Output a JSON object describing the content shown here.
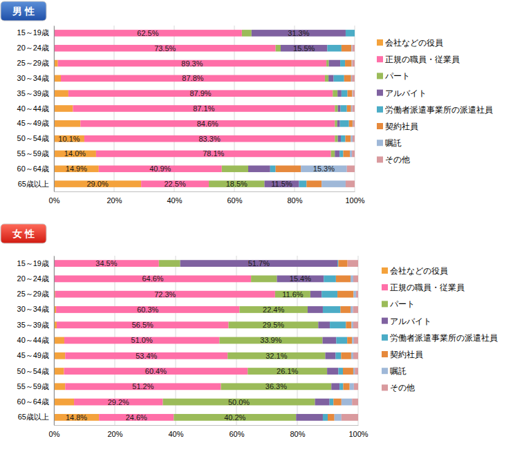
{
  "chart_data": [
    {
      "type": "bar",
      "title": "男 性",
      "orientation": "horizontal",
      "stacked": true,
      "data_labels": true,
      "legend": "right",
      "grid": true,
      "categories": [
        "15～19歳",
        "20～24歳",
        "25～29歳",
        "30～34歳",
        "35～39歳",
        "40～44歳",
        "45～49歳",
        "50～54歳",
        "55～59歳",
        "60～64歳",
        "65歳以上"
      ],
      "xlim": [
        0,
        100
      ],
      "xticks": [
        {
          "value": 0,
          "label": "0%"
        },
        {
          "value": 20,
          "label": "20%"
        },
        {
          "value": 40,
          "label": "40%"
        },
        {
          "value": 60,
          "label": "60%"
        },
        {
          "value": 80,
          "label": "80%"
        },
        {
          "value": 100,
          "label": "100%"
        }
      ],
      "series": [
        {
          "name": "会社などの役員",
          "color": "#f4a23c",
          "values": [
            0,
            0.2,
            1.3,
            2.3,
            4.8,
            6.3,
            8.8,
            10.1,
            14.0,
            14.9,
            29.0
          ],
          "value_labels": [
            null,
            null,
            null,
            null,
            null,
            null,
            null,
            "10.1%",
            "14.0%",
            "14.9%",
            "29.0%"
          ]
        },
        {
          "name": "正規の職員・従業員",
          "color": "#ff6fa8",
          "values": [
            62.5,
            73.5,
            89.3,
            87.8,
            87.9,
            87.1,
            84.6,
            83.3,
            78.1,
            40.9,
            22.5
          ],
          "value_labels": [
            "62.5%",
            "73.5%",
            "89.3%",
            "87.8%",
            "87.9%",
            "87.1%",
            "84.6%",
            "83.3%",
            "78.1%",
            "40.9%",
            "22.5%"
          ]
        },
        {
          "name": "パート",
          "color": "#9bbb59",
          "values": [
            3.2,
            1.7,
            0.8,
            1.2,
            1.6,
            1.0,
            0.8,
            1.0,
            1.3,
            8.8,
            18.5
          ],
          "value_labels": [
            null,
            null,
            null,
            null,
            null,
            null,
            null,
            null,
            null,
            null,
            "18.5%"
          ]
        },
        {
          "name": "アルバイト",
          "color": "#7f61a0",
          "values": [
            31.3,
            15.5,
            3.8,
            1.7,
            1.3,
            0.9,
            0.9,
            1.0,
            1.6,
            7.3,
            11.5
          ],
          "value_labels": [
            "31.3%",
            "15.5%",
            null,
            null,
            null,
            null,
            null,
            null,
            null,
            null,
            "11.5%"
          ]
        },
        {
          "name": "労働者派遣事業所の派遣社員",
          "color": "#4bacc6",
          "values": [
            3.0,
            4.7,
            1.6,
            3.5,
            2.0,
            2.1,
            3.0,
            1.5,
            1.2,
            1.8,
            2.5
          ],
          "value_labels": [
            null,
            null,
            null,
            null,
            null,
            null,
            null,
            null,
            null,
            null,
            null
          ]
        },
        {
          "name": "契約社員",
          "color": "#e6893c",
          "values": [
            0,
            3.3,
            2.2,
            2.3,
            1.6,
            1.4,
            1.2,
            1.8,
            2.2,
            8.4,
            5.0
          ],
          "value_labels": [
            null,
            null,
            null,
            null,
            null,
            null,
            null,
            null,
            null,
            null,
            null
          ]
        },
        {
          "name": "嘱託",
          "color": "#9fb8d8",
          "values": [
            0,
            0.3,
            0.2,
            0.3,
            0.2,
            0.4,
            0.2,
            0.6,
            0.7,
            15.3,
            8.0
          ],
          "value_labels": [
            null,
            null,
            null,
            null,
            null,
            null,
            null,
            null,
            null,
            "15.3%",
            null
          ]
        },
        {
          "name": "その他",
          "color": "#d99a9e",
          "values": [
            0,
            0.8,
            0.8,
            0.9,
            0.6,
            0.8,
            0.5,
            0.7,
            0.9,
            2.6,
            3.0
          ],
          "value_labels": [
            null,
            null,
            null,
            null,
            null,
            null,
            null,
            null,
            null,
            null,
            null
          ]
        }
      ]
    },
    {
      "type": "bar",
      "title": "女 性",
      "orientation": "horizontal",
      "stacked": true,
      "data_labels": true,
      "legend": "right",
      "grid": true,
      "categories": [
        "15～19歳",
        "20～24歳",
        "25～29歳",
        "30～34歳",
        "35～39歳",
        "40～44歳",
        "45～49歳",
        "50～54歳",
        "55～59歳",
        "60～64歳",
        "65歳以上"
      ],
      "xlim": [
        0,
        100
      ],
      "xticks": [
        {
          "value": 0,
          "label": "0%"
        },
        {
          "value": 20,
          "label": "20%"
        },
        {
          "value": 40,
          "label": "40%"
        },
        {
          "value": 60,
          "label": "60%"
        },
        {
          "value": 80,
          "label": "80%"
        },
        {
          "value": 100,
          "label": "100%"
        }
      ],
      "series": [
        {
          "name": "会社などの役員",
          "color": "#f4a23c",
          "values": [
            0,
            0.2,
            0.4,
            0.7,
            0.9,
            3.4,
            3.7,
            3.3,
            3.7,
            6.6,
            14.8
          ],
          "value_labels": [
            null,
            null,
            null,
            null,
            null,
            null,
            null,
            null,
            null,
            null,
            "14.8%"
          ]
        },
        {
          "name": "正規の職員・従業員",
          "color": "#ff6fa8",
          "values": [
            34.5,
            64.6,
            72.3,
            60.3,
            56.5,
            51.0,
            53.4,
            60.4,
            51.2,
            29.2,
            24.6
          ],
          "value_labels": [
            "34.5%",
            "64.6%",
            "72.3%",
            "60.3%",
            "56.5%",
            "51.0%",
            "53.4%",
            "60.4%",
            "51.2%",
            "29.2%",
            "24.6%"
          ]
        },
        {
          "name": "パート",
          "color": "#9bbb59",
          "values": [
            7.0,
            8.5,
            11.6,
            22.4,
            29.5,
            33.9,
            32.1,
            26.1,
            36.3,
            50.0,
            40.2
          ],
          "value_labels": [
            null,
            null,
            "11.6%",
            "22.4%",
            "29.5%",
            "33.9%",
            "32.1%",
            "26.1%",
            "36.3%",
            "50.0%",
            "40.2%"
          ]
        },
        {
          "name": "アルバイト",
          "color": "#7f61a0",
          "values": [
            51.7,
            15.4,
            3.7,
            5.0,
            3.8,
            4.5,
            3.4,
            3.7,
            2.7,
            4.8,
            8.8
          ],
          "value_labels": [
            "51.7%",
            "15.4%",
            null,
            null,
            null,
            null,
            null,
            null,
            null,
            null,
            null
          ]
        },
        {
          "name": "労働者派遣事業所の派遣社員",
          "color": "#4bacc6",
          "values": [
            0.3,
            4.0,
            5.2,
            5.8,
            5.3,
            3.6,
            1.8,
            1.5,
            1.2,
            1.3,
            1.6
          ],
          "value_labels": [
            null,
            null,
            null,
            null,
            null,
            null,
            null,
            null,
            null,
            null,
            null
          ]
        },
        {
          "name": "契約社員",
          "color": "#e6893c",
          "values": [
            3.0,
            4.8,
            5.3,
            3.3,
            1.8,
            1.6,
            3.3,
            3.4,
            2.1,
            2.6,
            2.2
          ],
          "value_labels": [
            null,
            null,
            null,
            null,
            null,
            null,
            null,
            null,
            null,
            null,
            null
          ]
        },
        {
          "name": "嘱託",
          "color": "#9fb8d8",
          "values": [
            0,
            0.9,
            0.8,
            0.8,
            0.6,
            0.6,
            0.7,
            0.5,
            1.4,
            3.5,
            2.3
          ],
          "value_labels": [
            null,
            null,
            null,
            null,
            null,
            null,
            null,
            null,
            null,
            null,
            null
          ]
        },
        {
          "name": "その他",
          "color": "#d99a9e",
          "values": [
            3.5,
            1.6,
            0.7,
            1.7,
            1.6,
            1.4,
            1.6,
            1.1,
            1.4,
            2.0,
            5.5
          ],
          "value_labels": [
            null,
            null,
            null,
            null,
            null,
            null,
            null,
            null,
            null,
            null,
            null
          ]
        }
      ]
    }
  ]
}
